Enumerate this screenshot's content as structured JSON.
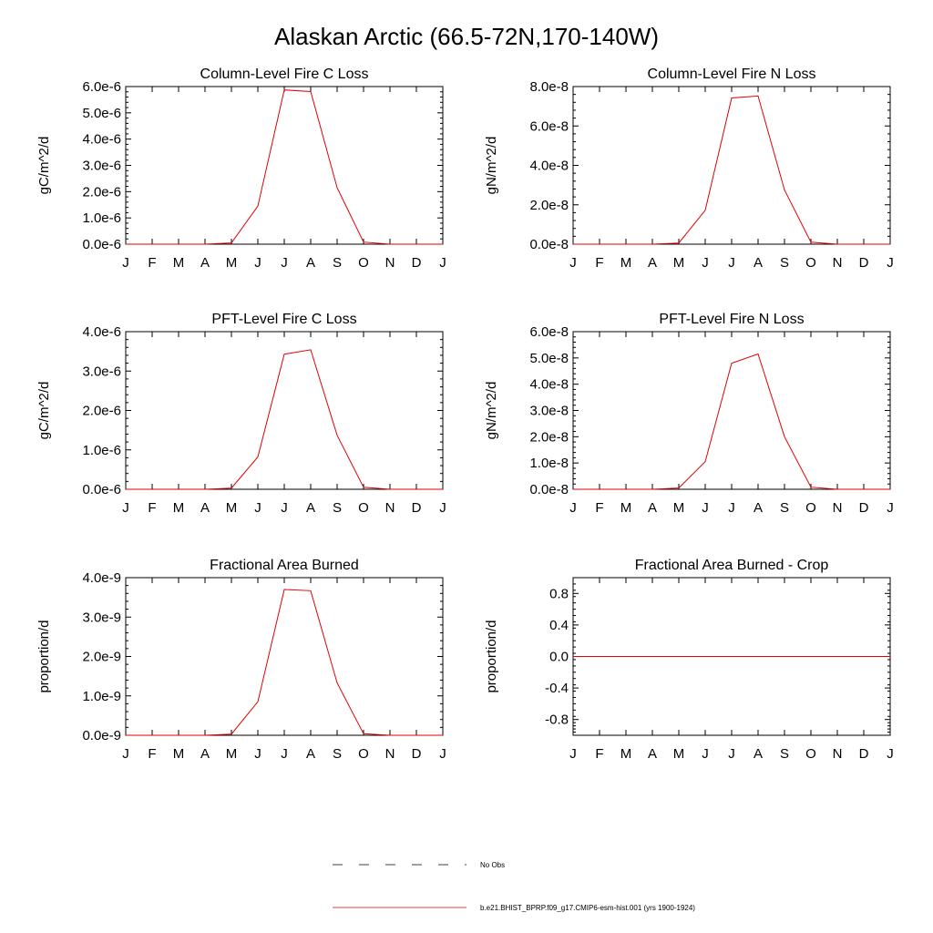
{
  "title": "Alaskan Arctic (66.5-72N,170-140W)",
  "colors": {
    "series": "#e00000",
    "no_obs": "#000000",
    "axes": "#000000"
  },
  "legend": {
    "items": [
      {
        "label": "No Obs",
        "style": "dashed",
        "color": "#000000"
      },
      {
        "label": "b.e21.BHIST_BPRP.f09_g17.CMIP6-esm-hist.001 (yrs 1900-1924)",
        "style": "solid",
        "color": "#e00000"
      }
    ]
  },
  "chart_data": [
    {
      "type": "line",
      "title": "Column-Level Fire C Loss",
      "ylabel": "gC/m^2/d",
      "xlabel": "",
      "categories": [
        "J",
        "F",
        "M",
        "A",
        "M",
        "J",
        "J",
        "A",
        "S",
        "O",
        "N",
        "D",
        "J"
      ],
      "ylim": [
        0,
        6e-06
      ],
      "yticks": [
        0,
        1e-06,
        2e-06,
        3e-06,
        4e-06,
        5e-06,
        6e-06
      ],
      "ytick_labels": [
        "0.0e-6",
        "1.0e-6",
        "2.0e-6",
        "3.0e-6",
        "4.0e-6",
        "5.0e-6",
        "6.0e-6"
      ],
      "series": [
        {
          "values": [
            0,
            0,
            0,
            0,
            5e-08,
            1.45e-06,
            5.87e-06,
            5.81e-06,
            2.15e-06,
            8e-08,
            0,
            0,
            0
          ]
        }
      ]
    },
    {
      "type": "line",
      "title": "Column-Level Fire N Loss",
      "ylabel": "gN/m^2/d",
      "xlabel": "",
      "categories": [
        "J",
        "F",
        "M",
        "A",
        "M",
        "J",
        "J",
        "A",
        "S",
        "O",
        "N",
        "D",
        "J"
      ],
      "ylim": [
        0,
        8e-08
      ],
      "yticks": [
        0,
        2e-08,
        4e-08,
        6e-08,
        8e-08
      ],
      "ytick_labels": [
        "0.0e-8",
        "2.0e-8",
        "4.0e-8",
        "6.0e-8",
        "8.0e-8"
      ],
      "series": [
        {
          "values": [
            0,
            0,
            0,
            0,
            6e-10,
            1.72e-08,
            7.42e-08,
            7.52e-08,
            2.75e-08,
            1e-09,
            0,
            0,
            0
          ]
        }
      ]
    },
    {
      "type": "line",
      "title": "PFT-Level Fire C Loss",
      "ylabel": "gC/m^2/d",
      "xlabel": "",
      "categories": [
        "J",
        "F",
        "M",
        "A",
        "M",
        "J",
        "J",
        "A",
        "S",
        "O",
        "N",
        "D",
        "J"
      ],
      "ylim": [
        0,
        4e-06
      ],
      "yticks": [
        0,
        1e-06,
        2e-06,
        3e-06,
        4e-06
      ],
      "ytick_labels": [
        "0.0e-6",
        "1.0e-6",
        "2.0e-6",
        "3.0e-6",
        "4.0e-6"
      ],
      "series": [
        {
          "values": [
            0,
            0,
            0,
            0,
            3e-08,
            8.2e-07,
            3.43e-06,
            3.54e-06,
            1.37e-06,
            5e-08,
            0,
            0,
            0
          ]
        }
      ]
    },
    {
      "type": "line",
      "title": "PFT-Level Fire N Loss",
      "ylabel": "gN/m^2/d",
      "xlabel": "",
      "categories": [
        "J",
        "F",
        "M",
        "A",
        "M",
        "J",
        "J",
        "A",
        "S",
        "O",
        "N",
        "D",
        "J"
      ],
      "ylim": [
        0,
        6e-08
      ],
      "yticks": [
        0,
        1e-08,
        2e-08,
        3e-08,
        4e-08,
        5e-08,
        6e-08
      ],
      "ytick_labels": [
        "0.0e-8",
        "1.0e-8",
        "2.0e-8",
        "3.0e-8",
        "4.0e-8",
        "5.0e-8",
        "6.0e-8"
      ],
      "series": [
        {
          "values": [
            0,
            0,
            0,
            0,
            5e-10,
            1.05e-08,
            4.8e-08,
            5.15e-08,
            2e-08,
            8e-10,
            0,
            0,
            0
          ]
        }
      ]
    },
    {
      "type": "line",
      "title": "Fractional Area Burned",
      "ylabel": "proportion/d",
      "xlabel": "",
      "categories": [
        "J",
        "F",
        "M",
        "A",
        "M",
        "J",
        "J",
        "A",
        "S",
        "O",
        "N",
        "D",
        "J"
      ],
      "ylim": [
        0,
        4e-09
      ],
      "yticks": [
        0,
        1e-09,
        2e-09,
        3e-09,
        4e-09
      ],
      "ytick_labels": [
        "0.0e-9",
        "1.0e-9",
        "2.0e-9",
        "3.0e-9",
        "4.0e-9"
      ],
      "series": [
        {
          "values": [
            0,
            0,
            0,
            0,
            3e-11,
            8.5e-10,
            3.7e-09,
            3.67e-09,
            1.33e-09,
            4e-11,
            0,
            0,
            0
          ]
        }
      ]
    },
    {
      "type": "line",
      "title": "Fractional Area Burned - Crop",
      "ylabel": "proportion/d",
      "xlabel": "",
      "categories": [
        "J",
        "F",
        "M",
        "A",
        "M",
        "J",
        "J",
        "A",
        "S",
        "O",
        "N",
        "D",
        "J"
      ],
      "ylim": [
        -1.0,
        1.0
      ],
      "yticks": [
        -0.8,
        -0.4,
        0.0,
        0.4,
        0.8
      ],
      "ytick_labels": [
        "-0.8",
        "-0.4",
        "0.0",
        "0.4",
        "0.8"
      ],
      "series": [
        {
          "values": [
            0,
            0,
            0,
            0,
            0,
            0,
            0,
            0,
            0,
            0,
            0,
            0,
            0
          ]
        }
      ]
    }
  ]
}
